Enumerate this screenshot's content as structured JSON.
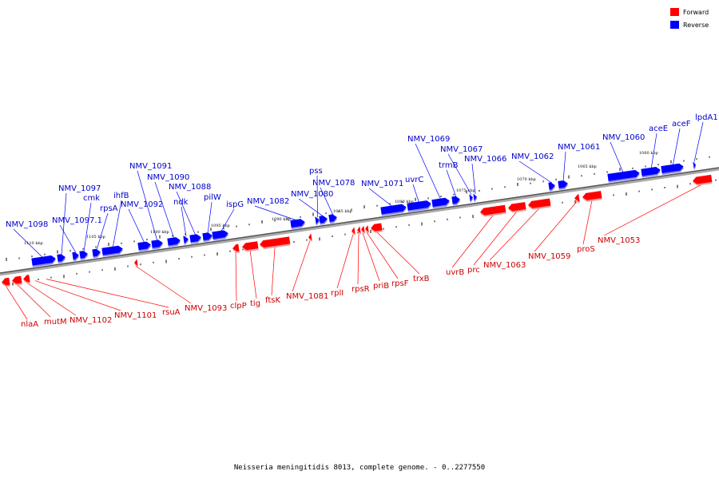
{
  "legend": {
    "forward": {
      "label": "Forward",
      "color": "#ff0000"
    },
    "reverse": {
      "label": "Reverse",
      "color": "#0000ff"
    }
  },
  "caption": "Neisseria meningitidis 8013, complete genome. - 0..2277550",
  "kbp_labels": [
    "1110 kbp",
    "1105 kbp",
    "1100 kbp",
    "1095 kbp",
    "1090 kbp",
    "1085 kbp",
    "1080 kbp",
    "1075 kbp",
    "1070 kbp",
    "1065 kbp",
    "1060 kbp"
  ],
  "reverse_genes": [
    "NMV_1098",
    "NMV_1097",
    "NMV_1097.1",
    "cmk",
    "rpsA",
    "ihfB",
    "NMV_1092",
    "NMV_1091",
    "NMV_1090",
    "ndk",
    "NMV_1088",
    "pilW",
    "ispG",
    "NMV_1082",
    "pss",
    "NMV_1080",
    "NMV_1078",
    "NMV_1071",
    "uvrC",
    "NMV_1069",
    "trmB",
    "NMV_1067",
    "NMV_1066",
    "NMV_1062",
    "NMV_1061",
    "NMV_1060",
    "aceE",
    "aceF",
    "lpdA1"
  ],
  "forward_genes": [
    "nlaA",
    "mutM",
    "NMV_1102",
    "NMV_1101",
    "rsuA",
    "NMV_1093",
    "clpP",
    "tig",
    "ftsK",
    "NMV_1081",
    "rplI",
    "rpsR",
    "priB",
    "rpsF",
    "trxB",
    "uvrB",
    "prc",
    "NMV_1063",
    "NMV_1059",
    "proS",
    "NMV_1053"
  ]
}
